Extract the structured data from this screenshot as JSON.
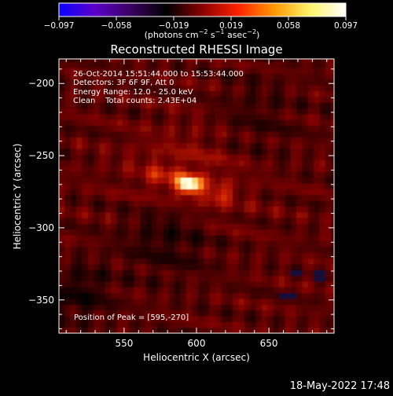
{
  "colorbar": {
    "tick_labels": [
      "−0.097",
      "−0.058",
      "−0.019",
      "0.019",
      "0.058",
      "0.097"
    ],
    "unit_main": "(photons cm",
    "unit_sup1": "−2",
    "unit_mid": " s",
    "unit_sup2": "−1",
    "unit_mid2": " asec",
    "unit_sup3": "−2",
    "unit_end": ")",
    "range": [
      -0.097,
      0.097
    ],
    "colors": [
      "#0a00ff",
      "#5b00c8",
      "#3a0060",
      "#000000",
      "#8a0000",
      "#ff2200",
      "#ff9900",
      "#fff36a",
      "#ffffff"
    ]
  },
  "chart_data": {
    "type": "heatmap",
    "title": "Reconstructed RHESSI Image",
    "xlabel": "Heliocentric X (arcsec)",
    "ylabel": "Heliocentric Y (arcsec)",
    "xlim": [
      505,
      695
    ],
    "ylim": [
      -373,
      -183
    ],
    "x_ticks": [
      550,
      600,
      650
    ],
    "x_tick_labels": [
      "550",
      "600",
      "650"
    ],
    "y_ticks": [
      -200,
      -250,
      -300,
      -350
    ],
    "y_tick_labels": [
      "−200",
      "−250",
      "−300",
      "−350"
    ],
    "annotations": [
      "26-Oct-2014 15:51:44.000 to 15:53:44.000",
      "Detectors: 3F 6F 9F, Att 0",
      "Energy Range: 12.0 - 25.0 keV",
      "Clean    Total counts: 2.43E+04"
    ],
    "peak_label": "Position of Peak = [595,-270]",
    "peak_position": [
      595,
      -270
    ],
    "pixel_size_arcsec": 4
  },
  "footer": {
    "timestamp": "18-May-2022 17:48"
  }
}
